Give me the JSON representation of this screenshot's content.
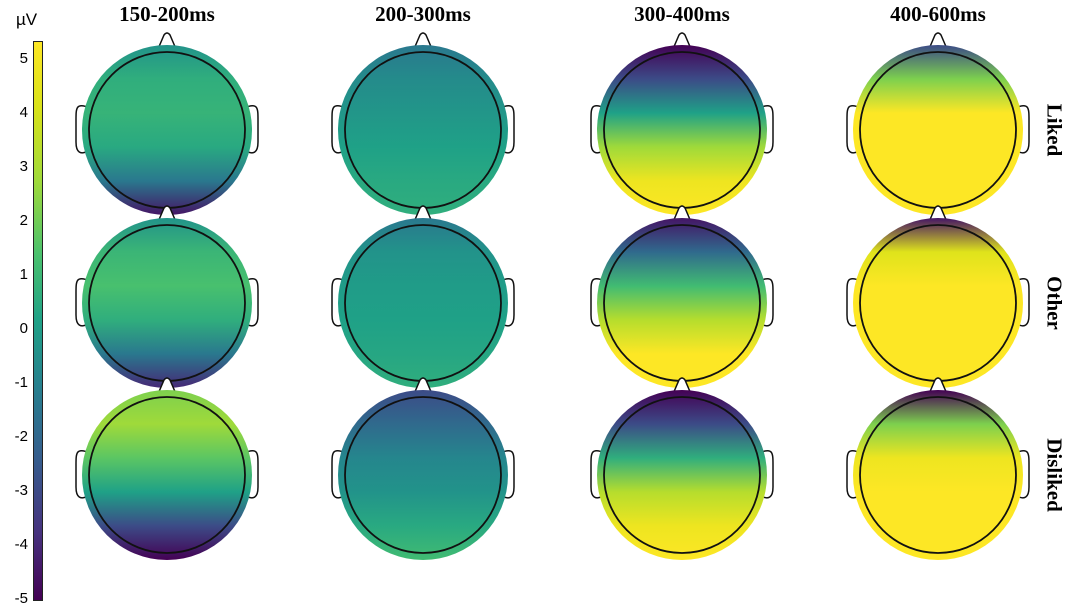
{
  "colorbar": {
    "unit": "µV",
    "ticks": [
      "5",
      "4",
      "3",
      "2",
      "1",
      "0",
      "-1",
      "-2",
      "-3",
      "-4",
      "-5"
    ],
    "range": [
      -5,
      5
    ],
    "colormap": "viridis",
    "colors": [
      "#440154",
      "#46327e",
      "#365c8d",
      "#277f8e",
      "#1fa187",
      "#4ac16d",
      "#9fda3a",
      "#d8e219",
      "#fde725"
    ]
  },
  "columns": [
    "150-200ms",
    "200-300ms",
    "300-400ms",
    "400-600ms"
  ],
  "rows": [
    "Liked",
    "Other",
    "Disliked"
  ],
  "maps": [
    [
      {
        "desc": "posterior negativity",
        "stops": [
          -0.5,
          0.5,
          0.7,
          0.3,
          -1.5,
          -4.5
        ]
      },
      {
        "desc": "near zero",
        "stops": [
          -1.5,
          -0.8,
          -0.4,
          0,
          0.3,
          0.5
        ]
      },
      {
        "desc": "frontal negative, posterior positive",
        "stops": [
          -5,
          -3,
          0,
          2.5,
          4.5,
          5
        ]
      },
      {
        "desc": "frontal-right negative, broad positive",
        "stops": [
          -3,
          2,
          5,
          5,
          5,
          5
        ]
      }
    ],
    [
      {
        "desc": "posterior negativity",
        "stops": [
          -0.5,
          0.8,
          1.2,
          0.5,
          -1.5,
          -4
        ]
      },
      {
        "desc": "near zero",
        "stops": [
          -1.5,
          -0.5,
          -0.2,
          0,
          0.2,
          0.5
        ]
      },
      {
        "desc": "frontal negative, posterior positive",
        "stops": [
          -4.5,
          -2,
          1,
          3,
          5,
          5
        ]
      },
      {
        "desc": "frontal negative, broad positive",
        "stops": [
          -4.5,
          4,
          5,
          5,
          5,
          5
        ]
      }
    ],
    [
      {
        "desc": "frontal-right positive, posterior negative",
        "stops": [
          2,
          2.5,
          1.5,
          0,
          -3,
          -5
        ]
      },
      {
        "desc": "slightly negative",
        "stops": [
          -3,
          -2,
          -1,
          -0.5,
          0.3,
          1
        ]
      },
      {
        "desc": "frontal negative, posterior positive",
        "stops": [
          -5,
          -3,
          0.5,
          3,
          4.5,
          5
        ]
      },
      {
        "desc": "frontal negative, broad positive",
        "stops": [
          -5,
          2,
          4.5,
          5,
          5,
          5
        ]
      }
    ]
  ]
}
